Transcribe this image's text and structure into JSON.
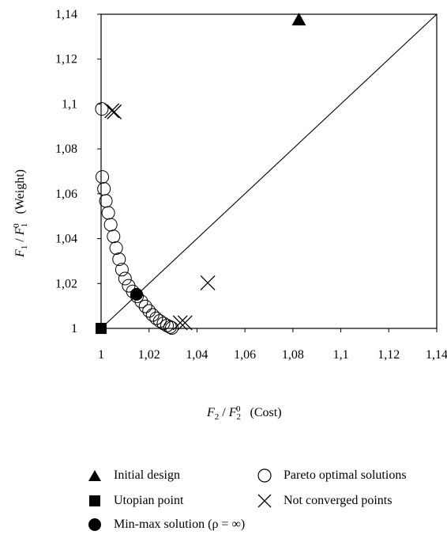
{
  "chart_data": {
    "type": "scatter",
    "title": "",
    "xlim": [
      1,
      1.14
    ],
    "ylim": [
      1,
      1.14
    ],
    "x_ticks": [
      "1",
      "1,02",
      "1,04",
      "1,06",
      "1,08",
      "1,1",
      "1,12",
      "1,14"
    ],
    "y_ticks": [
      "1",
      "1,02",
      "1,04",
      "1,06",
      "1,08",
      "1,1",
      "1,12",
      "1,14"
    ],
    "xlabel": {
      "num": "F",
      "num_sub": "2",
      "den": "F",
      "den_sub": "2",
      "den_sup": "0",
      "unit": "(Cost)"
    },
    "ylabel": {
      "num": "F",
      "num_sub": "1",
      "den": "F",
      "den_sub": "1",
      "den_sup": "0",
      "unit": "(Weight)"
    },
    "grid": false,
    "diagonal_line": {
      "from": [
        1,
        1
      ],
      "to": [
        1.14,
        1.14
      ]
    },
    "series": [
      {
        "name": "Initial design",
        "marker": "filled-triangle",
        "points": [
          [
            1.0825,
            1.1375
          ]
        ]
      },
      {
        "name": "Utopian point",
        "marker": "filled-square",
        "points": [
          [
            1.0,
            1.0
          ]
        ]
      },
      {
        "name": "Pareto optimal solutions",
        "marker": "open-circle",
        "points": [
          [
            1.0003,
            1.0978
          ],
          [
            1.0005,
            1.0675
          ],
          [
            1.0012,
            1.0622
          ],
          [
            1.002,
            1.0568
          ],
          [
            1.003,
            1.0515
          ],
          [
            1.004,
            1.0462
          ],
          [
            1.0052,
            1.041
          ],
          [
            1.0063,
            1.0358
          ],
          [
            1.0075,
            1.0308
          ],
          [
            1.0087,
            1.0262
          ],
          [
            1.01,
            1.0222
          ],
          [
            1.0115,
            1.019
          ],
          [
            1.0132,
            1.0165
          ],
          [
            1.015,
            1.0143
          ],
          [
            1.0168,
            1.012
          ],
          [
            1.0185,
            1.0098
          ],
          [
            1.02,
            1.0078
          ],
          [
            1.0215,
            1.006
          ],
          [
            1.023,
            1.0045
          ],
          [
            1.0245,
            1.0033
          ],
          [
            1.026,
            1.0022
          ],
          [
            1.0275,
            1.0013
          ],
          [
            1.0288,
            1.0006
          ],
          [
            1.0295,
            1.0002
          ]
        ]
      },
      {
        "name": "Not converged points",
        "marker": "cross",
        "points": [
          [
            1.0045,
            1.097
          ],
          [
            1.0055,
            1.0965
          ],
          [
            1.0445,
            1.0203
          ],
          [
            1.033,
            1.0025
          ],
          [
            1.035,
            1.0025
          ]
        ]
      },
      {
        "name": "Min-max solution (ρ = ∞)",
        "marker": "filled-circle",
        "points": [
          [
            1.0148,
            1.0152
          ]
        ]
      }
    ],
    "legend": {
      "placement": "bottom",
      "items": [
        {
          "label": "Initial design",
          "marker": "filled-triangle"
        },
        {
          "label": "Pareto optimal solutions",
          "marker": "open-circle"
        },
        {
          "label": "Utopian point",
          "marker": "filled-square"
        },
        {
          "label": "Not converged points",
          "marker": "cross"
        },
        {
          "label": "Min-max solution (ρ = ∞)",
          "marker": "filled-circle"
        }
      ]
    }
  }
}
